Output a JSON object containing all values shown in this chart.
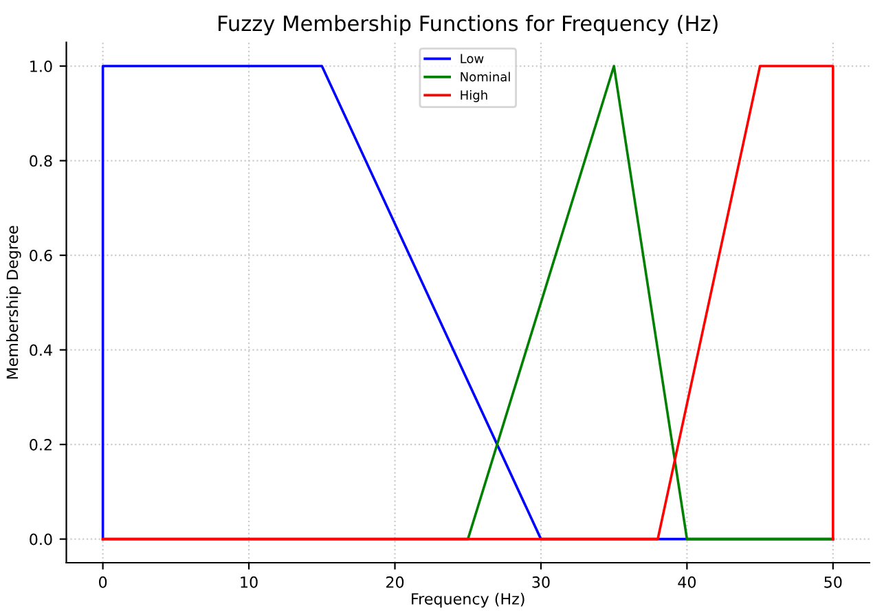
{
  "chart_data": {
    "type": "line",
    "title": "Fuzzy Membership Functions for Frequency (Hz)",
    "xlabel": "Frequency (Hz)",
    "ylabel": "Membership Degree",
    "series": [
      {
        "name": "Low",
        "color": "#0000ff",
        "x": [
          0,
          0,
          15,
          30,
          50
        ],
        "values": [
          0,
          1,
          1,
          0,
          0
        ]
      },
      {
        "name": "Nominal",
        "color": "#008000",
        "x": [
          0,
          25,
          35,
          40,
          50
        ],
        "values": [
          0,
          0,
          1,
          0,
          0
        ]
      },
      {
        "name": "High",
        "color": "#ff0000",
        "x": [
          0,
          38,
          45,
          50,
          50
        ],
        "values": [
          0,
          0,
          1,
          1,
          0
        ]
      }
    ],
    "xlim": [
      -2.5,
      52.5
    ],
    "ylim": [
      -0.05,
      1.05
    ],
    "xticks": [
      0,
      10,
      20,
      30,
      40,
      50
    ],
    "yticks": [
      {
        "value": 0,
        "label": "0.0"
      },
      {
        "value": 0.2,
        "label": "0.2"
      },
      {
        "value": 0.4,
        "label": "0.4"
      },
      {
        "value": 0.6,
        "label": "0.6"
      },
      {
        "value": 0.8,
        "label": "0.8"
      },
      {
        "value": 1,
        "label": "1.0"
      }
    ],
    "grid": true,
    "legend": "top",
    "line_style": "solid",
    "marker": "none"
  }
}
